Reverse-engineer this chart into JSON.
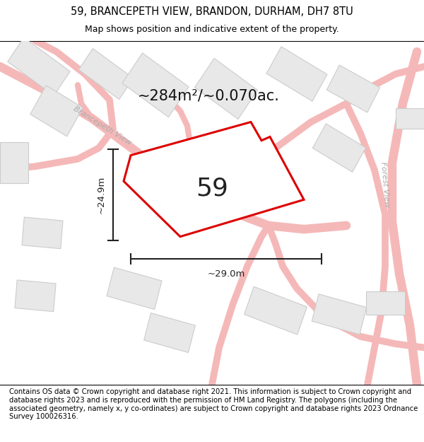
{
  "title_line1": "59, BRANCEPETH VIEW, BRANDON, DURHAM, DH7 8TU",
  "title_line2": "Map shows position and indicative extent of the property.",
  "footer_text": "Contains OS data © Crown copyright and database right 2021. This information is subject to Crown copyright and database rights 2023 and is reproduced with the permission of HM Land Registry. The polygons (including the associated geometry, namely x, y co-ordinates) are subject to Crown copyright and database rights 2023 Ordnance Survey 100026316.",
  "area_label": "~284m²/~0.070ac.",
  "plot_number": "59",
  "dim_width": "~29.0m",
  "dim_height": "~24.9m",
  "map_bg": "#ffffff",
  "road_color": "#f5b8b8",
  "road_outline": "#e8a0a0",
  "building_fill": "#e8e8e8",
  "building_edge": "#cccccc",
  "plot_edge": "#dd0000",
  "dim_line_color": "#222222",
  "label_color": "#aaaaaa",
  "title_fontsize": 10.5,
  "subtitle_fontsize": 9,
  "footer_fontsize": 7.2,
  "area_fontsize": 15,
  "number_fontsize": 26,
  "dim_fontsize": 9.5
}
